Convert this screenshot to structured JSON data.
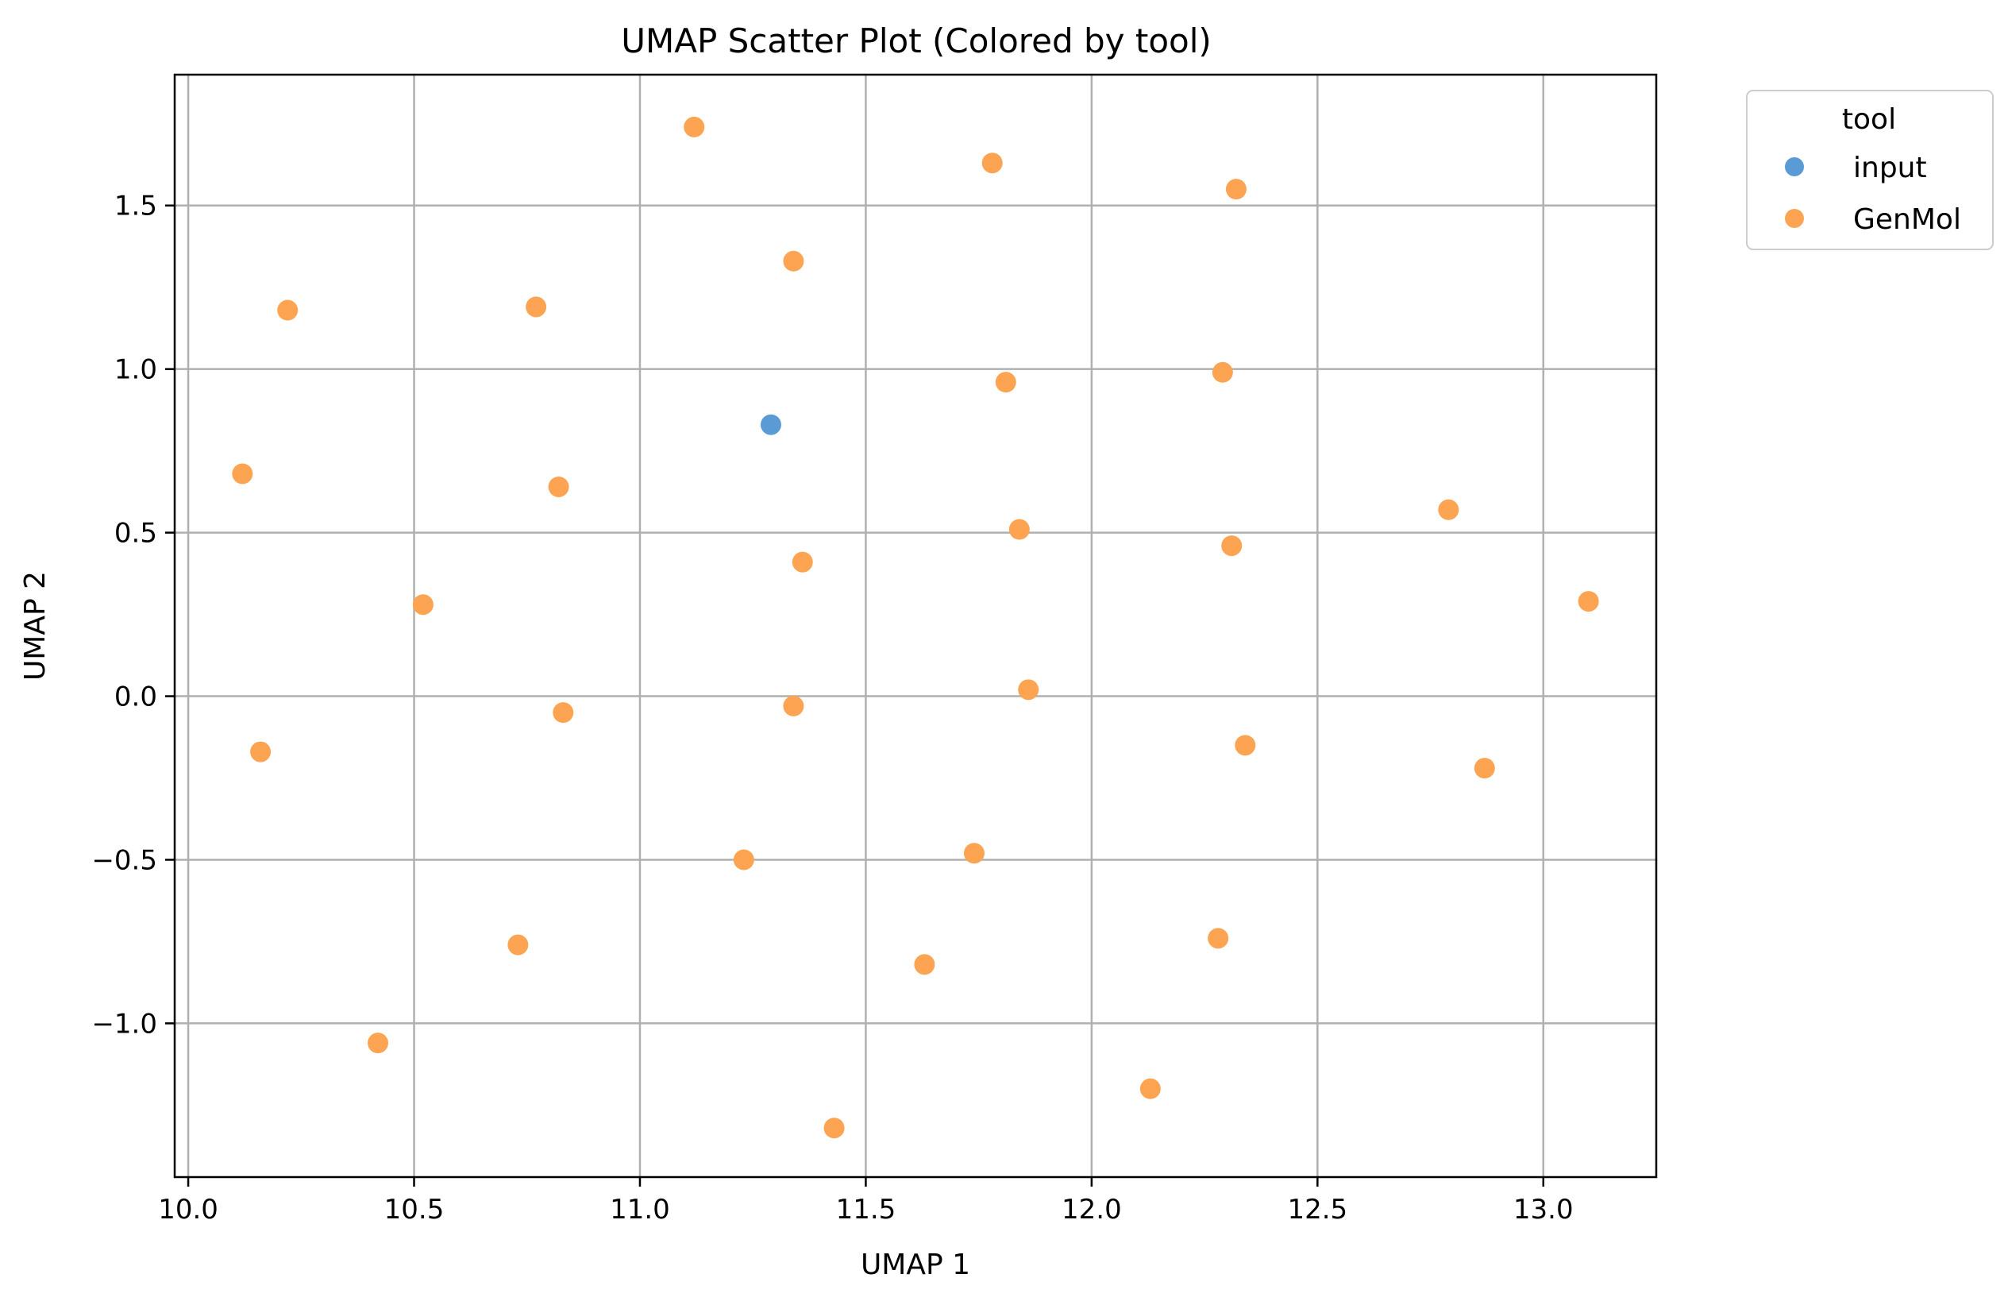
{
  "chart_data": {
    "type": "scatter",
    "title": "UMAP Scatter Plot (Colored by tool)",
    "xlabel": "UMAP 1",
    "ylabel": "UMAP 2",
    "xlim": [
      9.97,
      13.25
    ],
    "ylim": [
      -1.47,
      1.9
    ],
    "xticks": [
      10.0,
      10.5,
      11.0,
      11.5,
      12.0,
      12.5,
      13.0
    ],
    "xtick_labels": [
      "10.0",
      "10.5",
      "11.0",
      "11.5",
      "12.0",
      "12.5",
      "13.0"
    ],
    "yticks": [
      -1.0,
      -0.5,
      0.0,
      0.5,
      1.0,
      1.5
    ],
    "ytick_labels": [
      "−1.0",
      "−0.5",
      "0.0",
      "0.5",
      "1.0",
      "1.5"
    ],
    "grid": true,
    "legend": {
      "title": "tool",
      "position": "outside-top-right"
    },
    "series": [
      {
        "name": "input",
        "color": "#5b9bd5",
        "points": [
          {
            "x": 11.29,
            "y": 0.83
          }
        ]
      },
      {
        "name": "GenMol",
        "color": "#fda453",
        "points": [
          {
            "x": 11.12,
            "y": 1.74
          },
          {
            "x": 11.78,
            "y": 1.63
          },
          {
            "x": 12.32,
            "y": 1.55
          },
          {
            "x": 11.34,
            "y": 1.33
          },
          {
            "x": 10.22,
            "y": 1.18
          },
          {
            "x": 10.77,
            "y": 1.19
          },
          {
            "x": 11.81,
            "y": 0.96
          },
          {
            "x": 12.29,
            "y": 0.99
          },
          {
            "x": 10.12,
            "y": 0.68
          },
          {
            "x": 10.82,
            "y": 0.64
          },
          {
            "x": 12.79,
            "y": 0.57
          },
          {
            "x": 11.84,
            "y": 0.51
          },
          {
            "x": 12.31,
            "y": 0.46
          },
          {
            "x": 11.36,
            "y": 0.41
          },
          {
            "x": 10.52,
            "y": 0.28
          },
          {
            "x": 13.1,
            "y": 0.29
          },
          {
            "x": 11.86,
            "y": 0.02
          },
          {
            "x": 11.34,
            "y": -0.03
          },
          {
            "x": 10.83,
            "y": -0.05
          },
          {
            "x": 10.16,
            "y": -0.17
          },
          {
            "x": 12.34,
            "y": -0.15
          },
          {
            "x": 12.87,
            "y": -0.22
          },
          {
            "x": 11.74,
            "y": -0.48
          },
          {
            "x": 11.23,
            "y": -0.5
          },
          {
            "x": 12.28,
            "y": -0.74
          },
          {
            "x": 10.73,
            "y": -0.76
          },
          {
            "x": 11.63,
            "y": -0.82
          },
          {
            "x": 10.42,
            "y": -1.06
          },
          {
            "x": 12.13,
            "y": -1.2
          },
          {
            "x": 11.43,
            "y": -1.32
          }
        ]
      }
    ]
  }
}
